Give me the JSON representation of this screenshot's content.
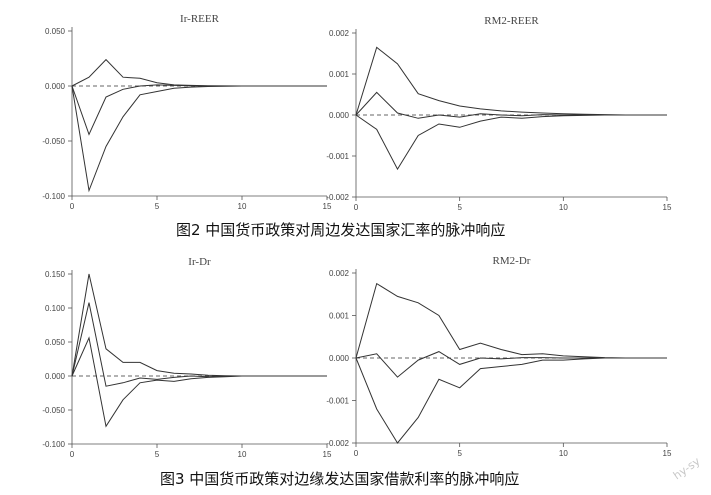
{
  "figure_captions": {
    "fig2": "图2  中国货币政策对周边发达国家汇率的脉冲响应",
    "fig3": "图3  中国货币政策对边缘发达国家借款利率的脉冲响应"
  },
  "watermark": "hy-sy",
  "colors": {
    "line": "#333333",
    "axis": "#555555",
    "text": "#444444"
  },
  "chart_data": [
    {
      "type": "line",
      "title": "Ir-REER",
      "xlim": [
        0,
        15
      ],
      "ylim": [
        -0.1,
        0.05
      ],
      "xticks": [
        0,
        5,
        10,
        15
      ],
      "xtick_labels": [
        "0",
        "5",
        "10",
        "15"
      ],
      "yticks": [
        0.05,
        0,
        -0.05,
        -0.1
      ],
      "ytick_labels": [
        "0.050",
        "0.000",
        "-0.050",
        "-0.100"
      ],
      "grid": false,
      "zero_line": "dashed",
      "x": [
        0,
        1,
        2,
        3,
        4,
        5,
        6,
        7,
        8,
        9,
        10,
        11,
        12,
        13,
        14,
        15
      ],
      "series": [
        {
          "role": "upper",
          "values": [
            0,
            0.008,
            0.024,
            0.008,
            0.007,
            0.003,
            0.001,
            0.0005,
            0.0002,
            0.0001,
            0,
            0,
            0,
            0,
            0,
            0
          ]
        },
        {
          "role": "irf",
          "values": [
            0,
            -0.044,
            -0.01,
            -0.003,
            0.0,
            0.001,
            0.0005,
            0.0002,
            0,
            0,
            0,
            0,
            0,
            0,
            0,
            0
          ]
        },
        {
          "role": "lower",
          "values": [
            0,
            -0.095,
            -0.055,
            -0.028,
            -0.008,
            -0.005,
            -0.002,
            -0.001,
            -0.0005,
            -0.0002,
            0,
            0,
            0,
            0,
            0,
            0
          ]
        }
      ]
    },
    {
      "type": "line",
      "title": "RM2-REER",
      "xlim": [
        0,
        15
      ],
      "ylim": [
        -0.002,
        0.002
      ],
      "xticks": [
        0,
        5,
        10,
        15
      ],
      "xtick_labels": [
        "0",
        "5",
        "10",
        "15"
      ],
      "yticks": [
        0.002,
        0.001,
        0,
        -0.001,
        -0.002
      ],
      "ytick_labels": [
        "0.002",
        "0.001",
        "0.000",
        "-0.001",
        "-0.002"
      ],
      "grid": false,
      "zero_line": "dashed",
      "x": [
        0,
        1,
        2,
        3,
        4,
        5,
        6,
        7,
        8,
        9,
        10,
        11,
        12,
        13,
        14,
        15
      ],
      "series": [
        {
          "role": "upper",
          "values": [
            0,
            0.00165,
            0.00125,
            0.00052,
            0.00035,
            0.00022,
            0.00015,
            0.0001,
            7e-05,
            5e-05,
            3e-05,
            2e-05,
            1e-05,
            0,
            0,
            0
          ]
        },
        {
          "role": "irf",
          "values": [
            0,
            0.00055,
            5e-05,
            -8e-05,
            0.0,
            -5e-05,
            3e-05,
            0.0,
            -2e-05,
            1e-05,
            0,
            0,
            0,
            0,
            0,
            0
          ]
        },
        {
          "role": "lower",
          "values": [
            0,
            -0.00035,
            -0.00132,
            -0.0005,
            -0.00022,
            -0.0003,
            -0.00015,
            -5e-05,
            -8e-05,
            -4e-05,
            -2e-05,
            -1e-05,
            0,
            0,
            0,
            0
          ]
        }
      ]
    },
    {
      "type": "line",
      "title": "Ir-Dr",
      "xlim": [
        0,
        15
      ],
      "ylim": [
        -0.1,
        0.15
      ],
      "xticks": [
        0,
        5,
        10,
        15
      ],
      "xtick_labels": [
        "0",
        "5",
        "10",
        "15"
      ],
      "yticks": [
        0.15,
        0.1,
        0.05,
        0,
        -0.05,
        -0.1
      ],
      "ytick_labels": [
        "0.150",
        "0.100",
        "0.050",
        "0.000",
        "-0.050",
        "-0.100"
      ],
      "grid": false,
      "zero_line": "dashed",
      "x": [
        0,
        1,
        2,
        3,
        4,
        5,
        6,
        7,
        8,
        9,
        10,
        11,
        12,
        13,
        14,
        15
      ],
      "series": [
        {
          "role": "upper",
          "values": [
            0,
            0.15,
            0.04,
            0.02,
            0.02,
            0.008,
            0.004,
            0.003,
            0.001,
            0.0005,
            0,
            0,
            0,
            0,
            0,
            0
          ]
        },
        {
          "role": "irf",
          "values": [
            0,
            0.108,
            -0.015,
            -0.01,
            -0.003,
            -0.005,
            -0.002,
            0.0,
            -0.001,
            0,
            0,
            0,
            0,
            0,
            0,
            0
          ]
        },
        {
          "role": "lower",
          "values": [
            0,
            0.056,
            -0.074,
            -0.035,
            -0.01,
            -0.006,
            -0.008,
            -0.004,
            -0.002,
            -0.001,
            0,
            0,
            0,
            0,
            0,
            0
          ]
        }
      ]
    },
    {
      "type": "line",
      "title": "RM2-Dr",
      "xlim": [
        0,
        15
      ],
      "ylim": [
        -0.002,
        0.002
      ],
      "xticks": [
        0,
        5,
        10,
        15
      ],
      "xtick_labels": [
        "0",
        "5",
        "10",
        "15"
      ],
      "yticks": [
        0.002,
        0.001,
        0,
        -0.001,
        -0.002
      ],
      "ytick_labels": [
        "0.002",
        "0.001",
        "0.000",
        "-0.001",
        "-0.002"
      ],
      "grid": false,
      "zero_line": "dashed",
      "x": [
        0,
        1,
        2,
        3,
        4,
        5,
        6,
        7,
        8,
        9,
        10,
        11,
        12,
        13,
        14,
        15
      ],
      "series": [
        {
          "role": "upper",
          "values": [
            0,
            0.00175,
            0.00145,
            0.0013,
            0.001,
            0.0002,
            0.00035,
            0.0002,
            8e-05,
            0.0001,
            5e-05,
            3e-05,
            1e-05,
            0,
            0,
            0
          ]
        },
        {
          "role": "irf",
          "values": [
            0,
            0.0001,
            -0.00045,
            -5e-05,
            0.00015,
            -0.00015,
            0.0,
            -2e-05,
            1e-05,
            1e-05,
            0,
            0,
            0,
            0,
            0,
            0
          ]
        },
        {
          "role": "lower",
          "values": [
            0,
            -0.0012,
            -0.002,
            -0.0014,
            -0.0005,
            -0.0007,
            -0.00025,
            -0.0002,
            -0.00015,
            -5e-05,
            -5e-05,
            -2e-05,
            0,
            0,
            0,
            0
          ]
        }
      ]
    }
  ]
}
